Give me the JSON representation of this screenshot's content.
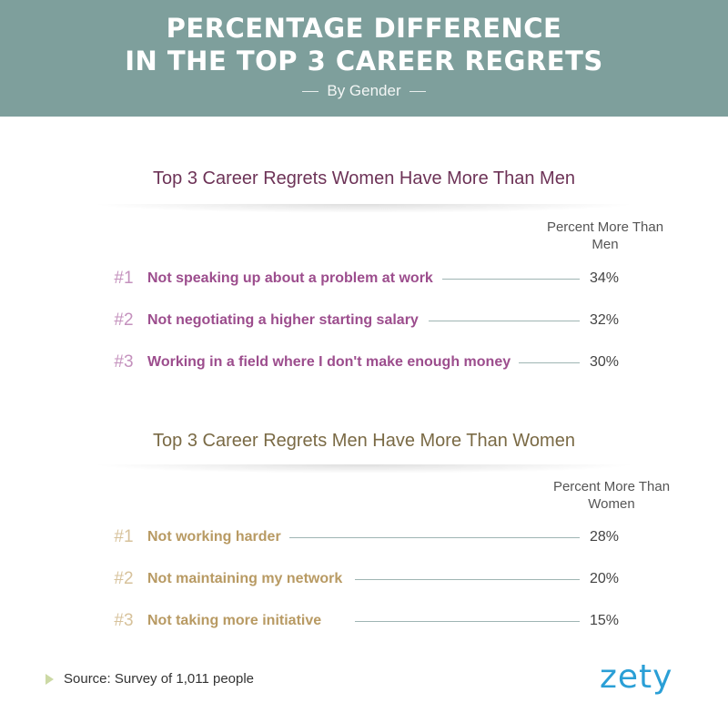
{
  "header": {
    "title_line1": "PERCENTAGE DIFFERENCE",
    "title_line2": "IN THE TOP 3 CAREER REGRETS",
    "subtitle": "By Gender"
  },
  "colors": {
    "header_bg": "#7e9f9c",
    "women_title": "#6d3357",
    "women_label": "#9c4d8d",
    "men_title": "#7a6a45",
    "men_label": "#b89a63",
    "leader_line": "#9fb5b3",
    "logo": "#2a9fd6"
  },
  "chart_data": [
    {
      "type": "table",
      "title": "Top 3 Career Regrets Women Have More Than Men",
      "column_header": "Percent More Than Men",
      "rows": [
        {
          "rank": "#1",
          "label": "Not speaking up about a problem at work",
          "value": 34,
          "display": "34%"
        },
        {
          "rank": "#2",
          "label": "Not negotiating a higher starting salary",
          "value": 32,
          "display": "32%"
        },
        {
          "rank": "#3",
          "label": "Working in a field where I don't make enough money",
          "value": 30,
          "display": "30%"
        }
      ]
    },
    {
      "type": "table",
      "title": "Top 3 Career Regrets Men Have More Than Women",
      "column_header": "Percent More Than Women",
      "rows": [
        {
          "rank": "#1",
          "label": "Not working harder",
          "value": 28,
          "display": "28%"
        },
        {
          "rank": "#2",
          "label": "Not maintaining my network",
          "value": 20,
          "display": "20%"
        },
        {
          "rank": "#3",
          "label": "Not taking more initiative",
          "value": 15,
          "display": "15%"
        }
      ]
    }
  ],
  "footer": {
    "source": "Source: Survey of 1,011 people",
    "logo": "zety"
  }
}
